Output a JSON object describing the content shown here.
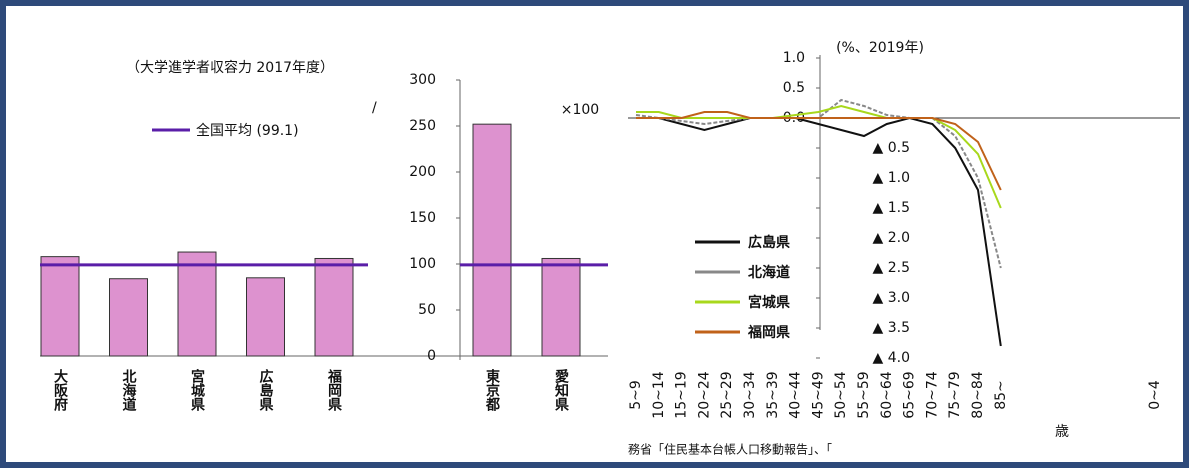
{
  "chart_data": [
    {
      "type": "bar",
      "title": "（大学進学者収容力 2017年度）",
      "unit_label": "×100",
      "slash": "/",
      "categories": [
        "大阪府",
        "北海道",
        "宮城県",
        "広島県",
        "福岡県",
        "東京都",
        "愛知県"
      ],
      "values": [
        108,
        84,
        113,
        85,
        106,
        252,
        106
      ],
      "color": "#dd92cf",
      "average": {
        "name": "全国平均 (99.1)",
        "value": 99.1,
        "color": "#5a1ea8"
      },
      "ylim": [
        0,
        300
      ],
      "yticks": [
        0,
        50,
        100,
        150,
        200,
        250,
        300
      ]
    },
    {
      "type": "line",
      "title": "(%、2019年)",
      "categories": [
        "5~9",
        "10~14",
        "15~19",
        "20~24",
        "25~29",
        "30~34",
        "35~39",
        "40~44",
        "45~49",
        "50~54",
        "55~59",
        "60~64",
        "65~69",
        "70~74",
        "75~79",
        "80~84",
        "85~"
      ],
      "extra_label": "0~4",
      "xlabel": "歳",
      "series": [
        {
          "name": "広島県",
          "color": "#111111",
          "values": [
            0,
            0,
            -0.1,
            -0.2,
            -0.1,
            0,
            0,
            0,
            -0.1,
            -0.2,
            -0.3,
            -0.1,
            0,
            -0.1,
            -0.5,
            -1.2,
            -3.8
          ]
        },
        {
          "name": "北海道",
          "color": "#888888",
          "values": [
            0.05,
            0,
            -0.05,
            -0.1,
            -0.05,
            0,
            0,
            0,
            0,
            0.3,
            0.2,
            0.05,
            0,
            0,
            -0.3,
            -1.0,
            -2.5
          ]
        },
        {
          "name": "宮城県",
          "color": "#a8d81c",
          "values": [
            0.1,
            0.1,
            0,
            0,
            0,
            0,
            0,
            0.05,
            0.1,
            0.2,
            0.1,
            0,
            0,
            0,
            -0.2,
            -0.6,
            -1.5
          ]
        },
        {
          "name": "福岡県",
          "color": "#c0621a",
          "values": [
            0,
            0,
            0,
            0.1,
            0.1,
            0,
            0,
            0,
            0,
            0,
            0,
            0,
            0,
            0,
            -0.1,
            -0.4,
            -1.2
          ]
        }
      ],
      "ylim": [
        -4,
        1
      ],
      "yticks": [
        {
          "value": 1,
          "label": "1.0"
        },
        0.5,
        {
          "value": 0,
          "label": "0.0"
        },
        {
          "value": -0.5,
          "label": "▲ 0.5"
        },
        {
          "value": -1,
          "label": "▲ 1.0"
        },
        {
          "value": -1.5,
          "label": "▲ 1.5"
        },
        {
          "value": -2,
          "label": "▲ 2.0"
        },
        {
          "value": -2.5,
          "label": "▲ 2.5"
        },
        {
          "value": -3,
          "label": "▲ 3.0"
        },
        {
          "value": -3.5,
          "label": "▲ 3.5"
        },
        {
          "value": -4,
          "label": "▲ 4.0"
        }
      ]
    }
  ],
  "source": "務省「住民基本台帳人口移動報告」、「"
}
